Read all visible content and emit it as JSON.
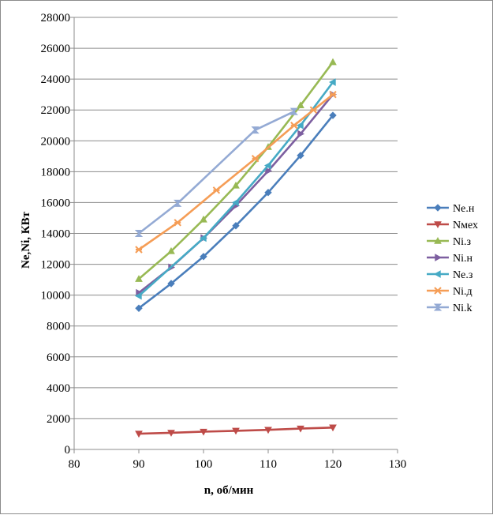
{
  "chart_data": {
    "type": "scatter",
    "title": "",
    "xlabel": "n, об/мин",
    "ylabel": "Ne,Ni, КВт",
    "xlim": [
      80,
      130
    ],
    "ylim": [
      0,
      28000
    ],
    "x_ticks": [
      80,
      90,
      100,
      110,
      120,
      130
    ],
    "y_ticks": [
      0,
      2000,
      4000,
      6000,
      8000,
      10000,
      12000,
      14000,
      16000,
      18000,
      20000,
      22000,
      24000,
      26000,
      28000
    ],
    "grid": "horizontal",
    "legend_position": "right",
    "series": [
      {
        "name": "Ne.н",
        "color": "#4a7ebb",
        "marker": "diamond",
        "x": [
          90,
          95,
          100,
          105,
          110,
          115,
          120
        ],
        "y": [
          9150,
          10750,
          12500,
          14500,
          16650,
          19050,
          21650
        ]
      },
      {
        "name": "Nмех",
        "color": "#be4b48",
        "marker": "triangle-down",
        "x": [
          90,
          95,
          100,
          105,
          110,
          115,
          120
        ],
        "y": [
          1020,
          1080,
          1150,
          1210,
          1270,
          1350,
          1420
        ]
      },
      {
        "name": "Ni.з",
        "color": "#98b954",
        "marker": "triangle-up",
        "x": [
          90,
          95,
          100,
          105,
          110,
          115,
          120
        ],
        "y": [
          11050,
          12850,
          14900,
          17100,
          19600,
          22300,
          25100
        ]
      },
      {
        "name": "Ni.н",
        "color": "#7d5fa0",
        "marker": "triangle-right",
        "x": [
          90,
          95,
          100,
          105,
          110,
          115,
          120
        ],
        "y": [
          10150,
          11800,
          13700,
          15800,
          18050,
          20450,
          23000
        ]
      },
      {
        "name": "Ne.з",
        "color": "#46aac5",
        "marker": "triangle-left",
        "x": [
          90,
          100,
          105,
          110,
          115,
          120
        ],
        "y": [
          9950,
          13700,
          16000,
          18400,
          21000,
          23800
        ]
      },
      {
        "name": "Ni.д",
        "color": "#f59d56",
        "marker": "star",
        "x": [
          90,
          96,
          102,
          108,
          114,
          117,
          120
        ],
        "y": [
          12950,
          14700,
          16800,
          18850,
          21000,
          22000,
          23000
        ]
      },
      {
        "name": "Ni.k",
        "color": "#94aad4",
        "marker": "hourglass",
        "x": [
          90,
          96,
          108,
          114
        ],
        "y": [
          14000,
          15950,
          20700,
          21900
        ]
      }
    ]
  }
}
